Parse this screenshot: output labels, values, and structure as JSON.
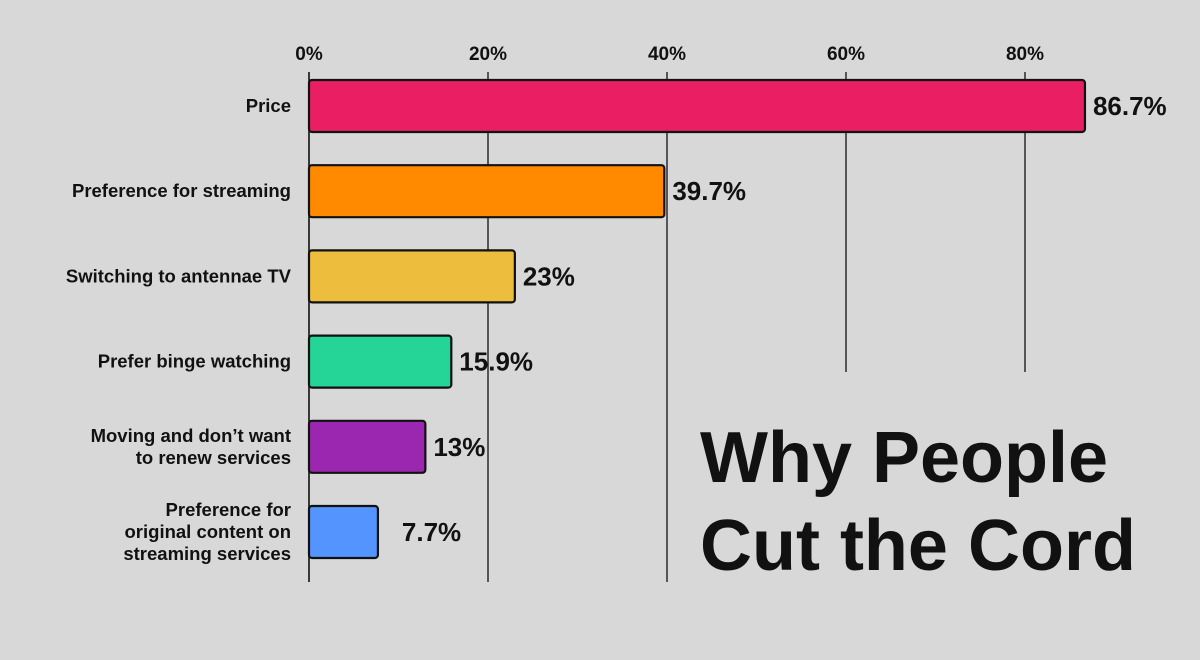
{
  "chart_data": {
    "type": "bar",
    "orientation": "horizontal",
    "title_lines": [
      "Why People",
      "Cut the Cord"
    ],
    "categories": [
      [
        "Price"
      ],
      [
        "Preference for streaming"
      ],
      [
        "Switching to antennae TV"
      ],
      [
        "Prefer binge watching"
      ],
      [
        "Moving and don’t want",
        "to renew services"
      ],
      [
        "Preference for",
        "original content on",
        "streaming services"
      ]
    ],
    "values": [
      86.7,
      39.7,
      23,
      15.9,
      13,
      7.7
    ],
    "value_labels": [
      "86.7%",
      "39.7%",
      "23%",
      "15.9%",
      "13%",
      "7.7%"
    ],
    "colors": [
      "#e91e63",
      "#ff8a00",
      "#edbd3e",
      "#24d597",
      "#9b27b0",
      "#5494ff"
    ],
    "xlim": [
      0,
      100
    ],
    "xticks": [
      0,
      20,
      40,
      60,
      80
    ],
    "xtick_labels": [
      "0%",
      "20%",
      "40%",
      "60%",
      "80%"
    ],
    "grid": "vertical",
    "xaxis_position": "top"
  }
}
